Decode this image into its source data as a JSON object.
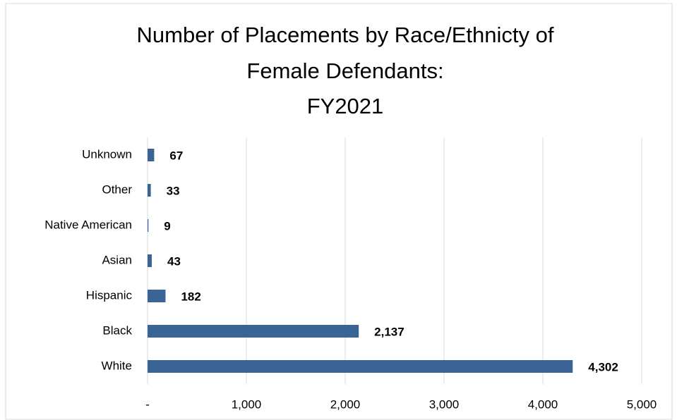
{
  "chart_data": {
    "type": "bar",
    "orientation": "horizontal",
    "title": [
      "Number of Placements by Race/Ethnicty of",
      "Female Defendants:",
      "FY2021"
    ],
    "categories": [
      "Unknown",
      "Other",
      "Native American",
      "Asian",
      "Hispanic",
      "Black",
      "White"
    ],
    "values": [
      67,
      33,
      9,
      43,
      182,
      2137,
      4302
    ],
    "value_labels": [
      "67",
      "33",
      "9",
      "43",
      "182",
      "2,137",
      "4,302"
    ],
    "color": "#3a6496",
    "xlim": [
      0,
      5000
    ],
    "xticks": [
      {
        "value": 0,
        "label": "-"
      },
      {
        "value": 1000,
        "label": "1,000"
      },
      {
        "value": 2000,
        "label": "2,000"
      },
      {
        "value": 3000,
        "label": "3,000"
      },
      {
        "value": 4000,
        "label": "4,000"
      },
      {
        "value": 5000,
        "label": "5,000"
      }
    ],
    "grid": true
  }
}
